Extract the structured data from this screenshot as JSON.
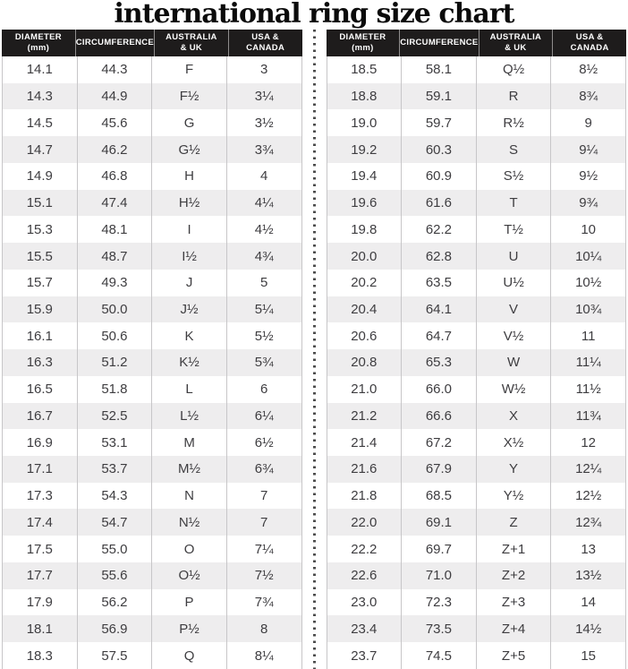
{
  "chart_data": {
    "type": "table",
    "title": "international ring size chart",
    "columns": [
      {
        "key": "diameter",
        "label": "DIAMETER\n(mm)"
      },
      {
        "key": "circumference",
        "label": "CIRCUMFERENCE"
      },
      {
        "key": "australia_uk",
        "label": "AUSTRALIA\n& UK"
      },
      {
        "key": "usa_canada",
        "label": "USA &\nCANADA"
      }
    ],
    "tables": [
      {
        "rows": [
          [
            "14.1",
            "44.3",
            "F",
            "3"
          ],
          [
            "14.3",
            "44.9",
            "F½",
            "3¼"
          ],
          [
            "14.5",
            "45.6",
            "G",
            "3½"
          ],
          [
            "14.7",
            "46.2",
            "G½",
            "3¾"
          ],
          [
            "14.9",
            "46.8",
            "H",
            "4"
          ],
          [
            "15.1",
            "47.4",
            "H½",
            "4¼"
          ],
          [
            "15.3",
            "48.1",
            "I",
            "4½"
          ],
          [
            "15.5",
            "48.7",
            "I½",
            "4¾"
          ],
          [
            "15.7",
            "49.3",
            "J",
            "5"
          ],
          [
            "15.9",
            "50.0",
            "J½",
            "5¼"
          ],
          [
            "16.1",
            "50.6",
            "K",
            "5½"
          ],
          [
            "16.3",
            "51.2",
            "K½",
            "5¾"
          ],
          [
            "16.5",
            "51.8",
            "L",
            "6"
          ],
          [
            "16.7",
            "52.5",
            "L½",
            "6¼"
          ],
          [
            "16.9",
            "53.1",
            "M",
            "6½"
          ],
          [
            "17.1",
            "53.7",
            "M½",
            "6¾"
          ],
          [
            "17.3",
            "54.3",
            "N",
            "7"
          ],
          [
            "17.4",
            "54.7",
            "N½",
            "7"
          ],
          [
            "17.5",
            "55.0",
            "O",
            "7¼"
          ],
          [
            "17.7",
            "55.6",
            "O½",
            "7½"
          ],
          [
            "17.9",
            "56.2",
            "P",
            "7¾"
          ],
          [
            "18.1",
            "56.9",
            "P½",
            "8"
          ],
          [
            "18.3",
            "57.5",
            "Q",
            "8¼"
          ]
        ]
      },
      {
        "rows": [
          [
            "18.5",
            "58.1",
            "Q½",
            "8½"
          ],
          [
            "18.8",
            "59.1",
            "R",
            "8¾"
          ],
          [
            "19.0",
            "59.7",
            "R½",
            "9"
          ],
          [
            "19.2",
            "60.3",
            "S",
            "9¼"
          ],
          [
            "19.4",
            "60.9",
            "S½",
            "9½"
          ],
          [
            "19.6",
            "61.6",
            "T",
            "9¾"
          ],
          [
            "19.8",
            "62.2",
            "T½",
            "10"
          ],
          [
            "20.0",
            "62.8",
            "U",
            "10¼"
          ],
          [
            "20.2",
            "63.5",
            "U½",
            "10½"
          ],
          [
            "20.4",
            "64.1",
            "V",
            "10¾"
          ],
          [
            "20.6",
            "64.7",
            "V½",
            "11"
          ],
          [
            "20.8",
            "65.3",
            "W",
            "11¼"
          ],
          [
            "21.0",
            "66.0",
            "W½",
            "11½"
          ],
          [
            "21.2",
            "66.6",
            "X",
            "11¾"
          ],
          [
            "21.4",
            "67.2",
            "X½",
            "12"
          ],
          [
            "21.6",
            "67.9",
            "Y",
            "12¼"
          ],
          [
            "21.8",
            "68.5",
            "Y½",
            "12½"
          ],
          [
            "22.0",
            "69.1",
            "Z",
            "12¾"
          ],
          [
            "22.2",
            "69.7",
            "Z+1",
            "13"
          ],
          [
            "22.6",
            "71.0",
            "Z+2",
            "13½"
          ],
          [
            "23.0",
            "72.3",
            "Z+3",
            "14"
          ],
          [
            "23.4",
            "73.5",
            "Z+4",
            "14½"
          ],
          [
            "23.7",
            "74.5",
            "Z+5",
            "15"
          ]
        ]
      }
    ],
    "layout": {
      "legend": "none",
      "grid": "column-dividers",
      "row_striping": "alternating"
    },
    "colors": {
      "header_bg": "#1e1c1c",
      "header_text": "#ffffff",
      "row_alt_bg": "#eeedee",
      "text": "#3e3d40",
      "column_divider": "#c7c6c8",
      "dotted_divider": "#4c4c4c",
      "title_text": "#0b0b0b"
    }
  }
}
